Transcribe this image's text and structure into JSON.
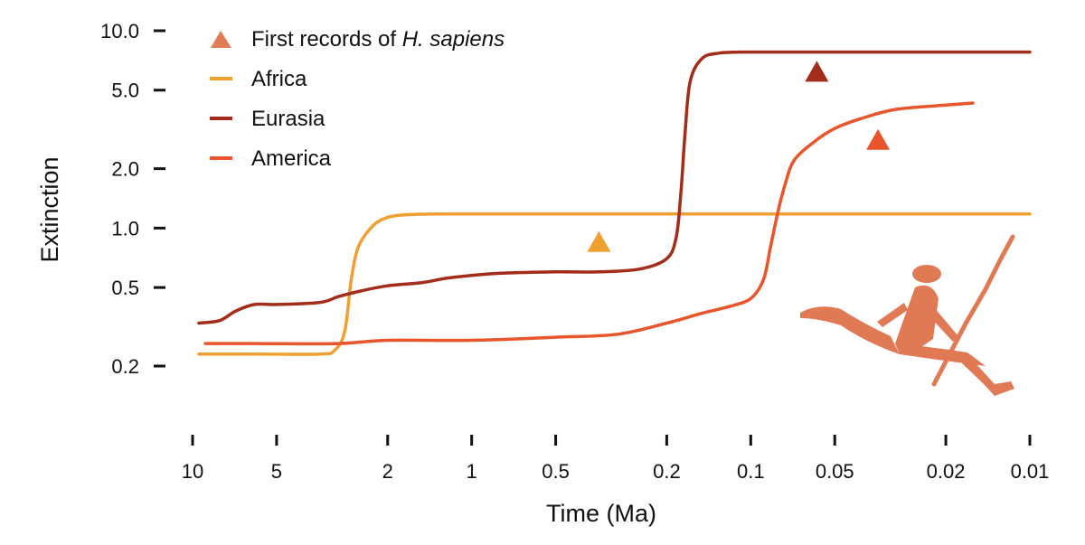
{
  "chart_data": {
    "type": "line",
    "xlabel": "Time (Ma)",
    "ylabel": "Extinction",
    "x_scale": "log-reversed",
    "y_scale": "log",
    "xlim": [
      10,
      0.01
    ],
    "ylim": [
      0.2,
      10.0
    ],
    "x_ticks": [
      10,
      5,
      2,
      1,
      0.5,
      0.2,
      0.1,
      0.05,
      0.02,
      0.01
    ],
    "x_tick_labels": [
      "10",
      "5",
      "2",
      "1",
      "0.5",
      "0.2",
      "0.1",
      "0.05",
      "0.02",
      "0.01"
    ],
    "y_ticks": [
      0.2,
      0.5,
      1.0,
      2.0,
      5.0,
      10.0
    ],
    "y_tick_labels": [
      "0.2",
      "0.5",
      "1.0",
      "2.0",
      "5.0",
      "10.0"
    ],
    "legend_position": "top-left",
    "grid": false,
    "marker_legend": {
      "label_prefix": "First records of ",
      "label_italic": "H. sapiens",
      "color": "#e07b55"
    },
    "series": [
      {
        "name": "Africa",
        "color": "#f0a030",
        "points": [
          [
            9.5,
            0.23
          ],
          [
            6,
            0.23
          ],
          [
            3.5,
            0.23
          ],
          [
            3.1,
            0.24
          ],
          [
            2.85,
            0.3
          ],
          [
            2.7,
            0.55
          ],
          [
            2.55,
            0.8
          ],
          [
            2.3,
            1.0
          ],
          [
            2.05,
            1.12
          ],
          [
            1.7,
            1.17
          ],
          [
            1.2,
            1.18
          ],
          [
            0.5,
            1.18
          ],
          [
            0.1,
            1.18
          ],
          [
            0.01,
            1.18
          ]
        ]
      },
      {
        "name": "Eurasia",
        "color": "#a32c1a",
        "points": [
          [
            9.5,
            0.33
          ],
          [
            8,
            0.34
          ],
          [
            7,
            0.38
          ],
          [
            6,
            0.41
          ],
          [
            5,
            0.41
          ],
          [
            3.5,
            0.42
          ],
          [
            3,
            0.45
          ],
          [
            2.5,
            0.48
          ],
          [
            2,
            0.51
          ],
          [
            1.5,
            0.53
          ],
          [
            1.2,
            0.56
          ],
          [
            0.8,
            0.59
          ],
          [
            0.5,
            0.6
          ],
          [
            0.35,
            0.6
          ],
          [
            0.25,
            0.62
          ],
          [
            0.2,
            0.7
          ],
          [
            0.185,
            0.9
          ],
          [
            0.178,
            1.5
          ],
          [
            0.172,
            3.0
          ],
          [
            0.165,
            5.5
          ],
          [
            0.15,
            7.2
          ],
          [
            0.13,
            7.7
          ],
          [
            0.1,
            7.8
          ],
          [
            0.05,
            7.8
          ],
          [
            0.01,
            7.8
          ]
        ]
      },
      {
        "name": "America",
        "color": "#e8552a",
        "points": [
          [
            9.0,
            0.26
          ],
          [
            6,
            0.26
          ],
          [
            3,
            0.26
          ],
          [
            2,
            0.27
          ],
          [
            1,
            0.27
          ],
          [
            0.5,
            0.28
          ],
          [
            0.3,
            0.29
          ],
          [
            0.2,
            0.33
          ],
          [
            0.15,
            0.37
          ],
          [
            0.12,
            0.4
          ],
          [
            0.1,
            0.44
          ],
          [
            0.09,
            0.55
          ],
          [
            0.085,
            0.8
          ],
          [
            0.08,
            1.2
          ],
          [
            0.075,
            1.7
          ],
          [
            0.07,
            2.2
          ],
          [
            0.06,
            2.7
          ],
          [
            0.05,
            3.2
          ],
          [
            0.04,
            3.6
          ],
          [
            0.03,
            4.0
          ],
          [
            0.02,
            4.2
          ],
          [
            0.016,
            4.3
          ]
        ]
      }
    ],
    "markers": [
      {
        "region": "Africa",
        "x": 0.35,
        "y": 0.85,
        "color": "#f0a030"
      },
      {
        "region": "Eurasia",
        "x": 0.058,
        "y": 6.2,
        "color": "#a32c1a"
      },
      {
        "region": "America",
        "x": 0.035,
        "y": 2.8,
        "color": "#e8552a"
      }
    ]
  }
}
